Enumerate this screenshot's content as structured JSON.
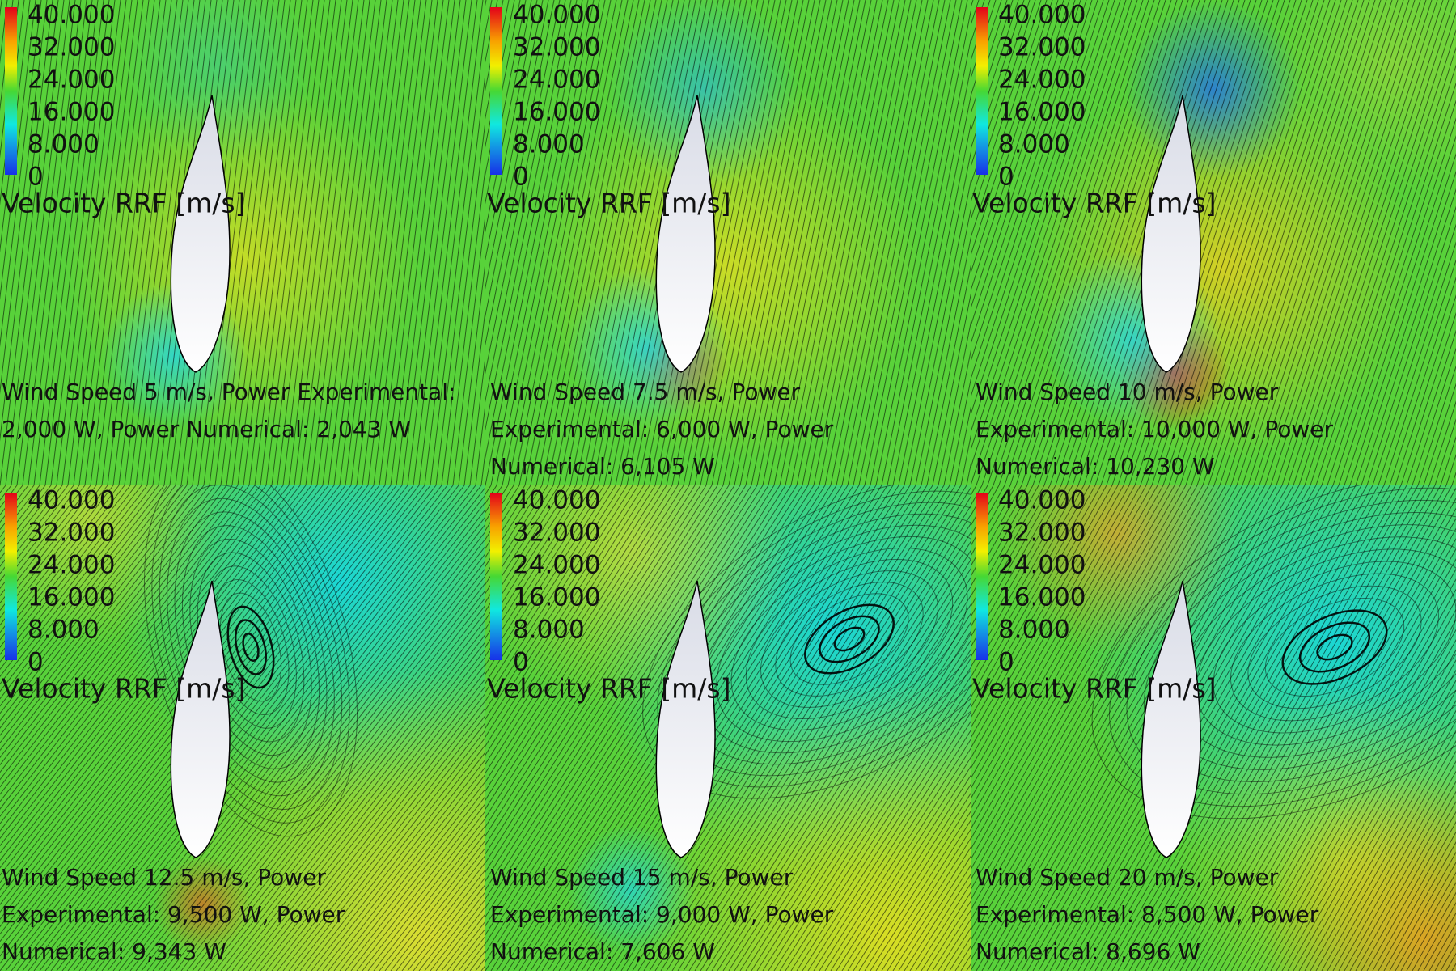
{
  "legend": {
    "ticks": [
      "40.000",
      "32.000",
      "24.000",
      "16.000",
      "8.000",
      "0"
    ],
    "title": "Velocity RRF [m/s]"
  },
  "panels": [
    {
      "caption": [
        "Wind Speed 5 m/s, Power Experimental:",
        "2,000 W, Power Numerical: 2,043 W"
      ]
    },
    {
      "caption": [
        "Wind Speed 7.5 m/s, Power",
        "Experimental: 6,000 W, Power",
        "Numerical: 6,105 W"
      ]
    },
    {
      "caption": [
        "Wind Speed 10 m/s, Power",
        "Experimental: 10,000 W, Power",
        "Numerical: 10,230 W"
      ]
    },
    {
      "caption": [
        "Wind Speed 12.5 m/s, Power",
        "Experimental: 9,500 W, Power",
        "Numerical: 9,343 W"
      ]
    },
    {
      "caption": [
        "Wind Speed 15 m/s, Power",
        "Experimental: 9,000 W, Power",
        "Numerical: 7,606 W"
      ]
    },
    {
      "caption": [
        "Wind Speed 20 m/s, Power",
        "Experimental: 8,500 W, Power",
        "Numerical: 8,696 W"
      ]
    }
  ]
}
